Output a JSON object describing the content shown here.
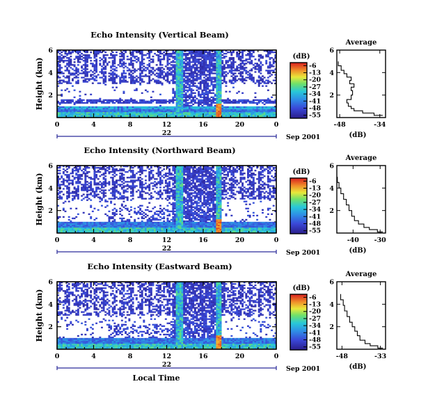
{
  "chart_data": [
    {
      "type": "heatmap",
      "title": "Echo Intensity (Vertical Beam)",
      "ylabel": "Height (km)",
      "yticks": [
        "2",
        "4",
        "6"
      ],
      "xticks": [
        "0",
        "4",
        "8",
        "12",
        "16",
        "20",
        "0"
      ],
      "xlim": [
        0,
        24
      ],
      "ylim": [
        0,
        6
      ],
      "date_day": "22",
      "date_label": "Sep 2001",
      "colorbar": {
        "unit": "(dB)",
        "ticks": [
          "-6",
          "-13",
          "-20",
          "-27",
          "-34",
          "-41",
          "-48",
          "-55"
        ],
        "range": [
          -58,
          -3
        ]
      },
      "profile": {
        "title": "Average",
        "xlabel": "(dB)",
        "xticks": [
          "-48",
          "-34"
        ],
        "xlim": [
          -49,
          -32
        ],
        "yticks": [
          "2",
          "4",
          "6"
        ],
        "ylim": [
          0,
          6
        ],
        "points": [
          [
            -33,
            0.2
          ],
          [
            -36,
            0.4
          ],
          [
            -40,
            0.6
          ],
          [
            -43,
            0.8
          ],
          [
            -44,
            1.0
          ],
          [
            -45,
            1.3
          ],
          [
            -45.5,
            1.6
          ],
          [
            -44,
            2.0
          ],
          [
            -43.5,
            2.4
          ],
          [
            -44,
            2.7
          ],
          [
            -43,
            3.0
          ],
          [
            -44.5,
            3.3
          ],
          [
            -44,
            3.6
          ],
          [
            -45.5,
            3.9
          ],
          [
            -46.5,
            4.2
          ],
          [
            -47.5,
            4.6
          ],
          [
            -48.5,
            5.0
          ]
        ]
      }
    },
    {
      "type": "heatmap",
      "title": "Echo Intensity (Northward Beam)",
      "ylabel": "Height (km)",
      "yticks": [
        "2",
        "4",
        "6"
      ],
      "xticks": [
        "0",
        "4",
        "8",
        "12",
        "16",
        "20",
        "0"
      ],
      "xlim": [
        0,
        24
      ],
      "ylim": [
        0,
        6
      ],
      "date_day": "22",
      "date_label": "Sep 2001",
      "colorbar": {
        "unit": "(dB)",
        "ticks": [
          "-6",
          "-13",
          "-20",
          "-27",
          "-34",
          "-41",
          "-48",
          "-55"
        ],
        "range": [
          -58,
          -3
        ]
      },
      "profile": {
        "title": "Average",
        "xlabel": "(dB)",
        "xticks": [
          "-40",
          "-30"
        ],
        "xlim": [
          -46,
          -28
        ],
        "yticks": [
          "2",
          "4",
          "6"
        ],
        "ylim": [
          0,
          6
        ],
        "points": [
          [
            -29,
            0.1
          ],
          [
            -31,
            0.3
          ],
          [
            -34,
            0.5
          ],
          [
            -36,
            0.8
          ],
          [
            -38,
            1.1
          ],
          [
            -39.5,
            1.5
          ],
          [
            -40.5,
            2.0
          ],
          [
            -41.5,
            2.5
          ],
          [
            -42.5,
            3.0
          ],
          [
            -43.5,
            3.5
          ],
          [
            -44.5,
            4.0
          ],
          [
            -45.2,
            4.5
          ],
          [
            -45.8,
            5.0
          ]
        ]
      }
    },
    {
      "type": "heatmap",
      "title": "Echo Intensity (Eastward Beam)",
      "ylabel": "Height (km)",
      "xlabel": "Local Time",
      "yticks": [
        "2",
        "4",
        "6"
      ],
      "xticks": [
        "0",
        "4",
        "8",
        "12",
        "16",
        "20",
        "0"
      ],
      "xlim": [
        0,
        24
      ],
      "ylim": [
        0,
        6
      ],
      "date_day": "22",
      "date_label": "Sep 2001",
      "colorbar": {
        "unit": "(dB)",
        "ticks": [
          "-6",
          "-13",
          "-20",
          "-27",
          "-34",
          "-41",
          "-48",
          "-55"
        ],
        "range": [
          -58,
          -3
        ]
      },
      "profile": {
        "title": "Average",
        "xlabel": "(dB)",
        "xticks": [
          "-48",
          "-33"
        ],
        "xlim": [
          -50,
          -31
        ],
        "yticks": [
          "2",
          "4",
          "6"
        ],
        "ylim": [
          0,
          6
        ],
        "points": [
          [
            -32,
            0.1
          ],
          [
            -34,
            0.3
          ],
          [
            -37,
            0.5
          ],
          [
            -39,
            0.8
          ],
          [
            -41,
            1.2
          ],
          [
            -42,
            1.6
          ],
          [
            -43,
            2.0
          ],
          [
            -44,
            2.4
          ],
          [
            -45,
            2.9
          ],
          [
            -46,
            3.4
          ],
          [
            -47,
            3.9
          ],
          [
            -47.5,
            4.4
          ],
          [
            -48.5,
            4.9
          ]
        ]
      }
    }
  ]
}
